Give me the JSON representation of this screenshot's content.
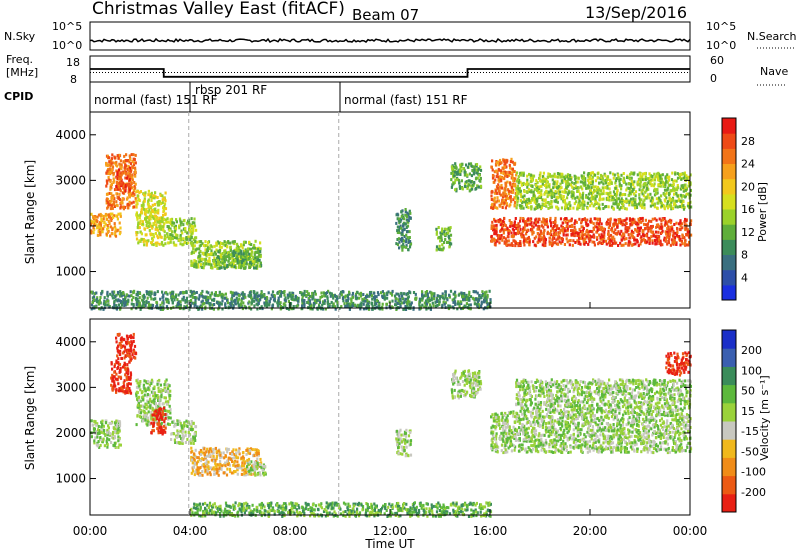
{
  "header": {
    "title": "Christmas Valley East (fitACF)",
    "beam": "Beam 07",
    "date": "13/Sep/2016"
  },
  "time_axis": {
    "label": "Time UT",
    "ticks": [
      "00:00",
      "04:00",
      "08:00",
      "12:00",
      "16:00",
      "20:00",
      "00:00"
    ],
    "range_hours": [
      0,
      24
    ]
  },
  "nsky_panel": {
    "left_label": "N.Sky",
    "right_label": "N.Search",
    "left_ticks": [
      "10^5",
      "10^0"
    ],
    "right_ticks": [
      "10^5",
      "10^0"
    ]
  },
  "freq_panel": {
    "left_label_line1": "Freq.",
    "left_label_line2": "[MHz]",
    "right_label": "Nave",
    "left_ticks": [
      "18",
      "8"
    ],
    "right_ticks": [
      "60",
      "0"
    ],
    "freq_mhz": [
      {
        "t": 0.0,
        "v": 13.0
      },
      {
        "t": 2.95,
        "v": 13.0
      },
      {
        "t": 2.95,
        "v": 10.0
      },
      {
        "t": 15.1,
        "v": 10.0
      },
      {
        "t": 15.1,
        "v": 13.0
      },
      {
        "t": 24.0,
        "v": 13.0
      }
    ],
    "nave_level": 22
  },
  "cpid": {
    "label": "CPID",
    "segments": [
      {
        "t_start": 0.0,
        "text": "normal (fast) 151 RF"
      },
      {
        "t_start": 3.95,
        "text": "rbsp 201 RF"
      },
      {
        "t_start": 9.95,
        "text": "normal (fast) 151 RF"
      }
    ]
  },
  "chart_data": [
    {
      "type": "heatmap",
      "ylabel": "Slant Range [km]",
      "xlabel": "Time UT",
      "xlim": [
        0,
        24
      ],
      "ylim": [
        200,
        4500
      ],
      "yticks": [
        "1000",
        "2000",
        "3000",
        "4000"
      ],
      "colorbar": {
        "label": "Power [dB]",
        "ticks": [
          "4",
          "8",
          "12",
          "16",
          "20",
          "24",
          "28"
        ],
        "colors": [
          "#1a2fe0",
          "#2d4fa8",
          "#3a6f80",
          "#3c8c5a",
          "#5fae3a",
          "#9bd22a",
          "#d6df1e",
          "#f2c81c",
          "#f6a01c",
          "#f27418",
          "#ee4a16",
          "#e81a14"
        ]
      },
      "regions": [
        {
          "t": [
            0.0,
            1.2
          ],
          "r": [
            1800,
            2300
          ],
          "level": 8
        },
        {
          "t": [
            0.6,
            1.8
          ],
          "r": [
            2400,
            3600
          ],
          "level": 9
        },
        {
          "t": [
            1.0,
            1.6
          ],
          "r": [
            2800,
            3300
          ],
          "level": 10
        },
        {
          "t": [
            1.8,
            3.0
          ],
          "r": [
            1600,
            2800
          ],
          "level": 6
        },
        {
          "t": [
            3.0,
            4.2
          ],
          "r": [
            1600,
            2200
          ],
          "level": 5
        },
        {
          "t": [
            4.0,
            6.8
          ],
          "r": [
            1100,
            1700
          ],
          "level": 5
        },
        {
          "t": [
            5.0,
            6.8
          ],
          "r": [
            1100,
            1500
          ],
          "level": 4
        },
        {
          "t": [
            12.2,
            12.8
          ],
          "r": [
            1500,
            2400
          ],
          "level": 3
        },
        {
          "t": [
            13.8,
            14.4
          ],
          "r": [
            1500,
            2000
          ],
          "level": 4
        },
        {
          "t": [
            14.4,
            15.6
          ],
          "r": [
            2800,
            3400
          ],
          "level": 4
        },
        {
          "t": [
            16.0,
            24.0
          ],
          "r": [
            1600,
            2200
          ],
          "level": 10
        },
        {
          "t": [
            16.0,
            17.0
          ],
          "r": [
            2400,
            3500
          ],
          "level": 9
        },
        {
          "t": [
            17.0,
            24.0
          ],
          "r": [
            2400,
            3200
          ],
          "level": 5
        },
        {
          "t": [
            0.0,
            16.0
          ],
          "r": [
            200,
            600
          ],
          "level": 3
        }
      ]
    },
    {
      "type": "heatmap",
      "ylabel": "Slant Range [km]",
      "xlabel": "Time UT",
      "xlim": [
        0,
        24
      ],
      "ylim": [
        200,
        4500
      ],
      "yticks": [
        "1000",
        "2000",
        "3000",
        "4000"
      ],
      "colorbar": {
        "label": "Velocity [m s⁻¹]",
        "ticks": [
          "200",
          "100",
          "50",
          "15",
          "-15",
          "-50",
          "-100",
          "-200"
        ],
        "colors": [
          "#1a2fc8",
          "#3a5fb0",
          "#3a8c5a",
          "#5cb83c",
          "#9ad23a",
          "#c8c8c0",
          "#f0b81c",
          "#f08c18",
          "#ec5a14",
          "#e82014"
        ]
      },
      "regions": [
        {
          "t": [
            0.0,
            1.2
          ],
          "r": [
            1700,
            2300
          ],
          "level": 5
        },
        {
          "t": [
            0.8,
            1.6
          ],
          "r": [
            2900,
            3600
          ],
          "level": 0
        },
        {
          "t": [
            1.0,
            1.8
          ],
          "r": [
            3600,
            4200
          ],
          "level": 0
        },
        {
          "t": [
            1.8,
            3.2
          ],
          "r": [
            2200,
            3200
          ],
          "level": 5
        },
        {
          "t": [
            2.4,
            3.0
          ],
          "r": [
            2000,
            2600
          ],
          "level": 0
        },
        {
          "t": [
            3.2,
            4.2
          ],
          "r": [
            1800,
            2300
          ],
          "level": 5
        },
        {
          "t": [
            4.0,
            6.8
          ],
          "r": [
            1100,
            1700
          ],
          "level": 3
        },
        {
          "t": [
            6.2,
            7.0
          ],
          "r": [
            1100,
            1400
          ],
          "level": 5
        },
        {
          "t": [
            12.2,
            12.8
          ],
          "r": [
            1500,
            2100
          ],
          "level": 5
        },
        {
          "t": [
            14.4,
            15.6
          ],
          "r": [
            2800,
            3400
          ],
          "level": 5
        },
        {
          "t": [
            16.0,
            24.0
          ],
          "r": [
            1600,
            2500
          ],
          "level": 5
        },
        {
          "t": [
            17.0,
            24.0
          ],
          "r": [
            2500,
            3200
          ],
          "level": 5
        },
        {
          "t": [
            23.0,
            24.0
          ],
          "r": [
            3300,
            3800
          ],
          "level": 0
        },
        {
          "t": [
            4.0,
            16.0
          ],
          "r": [
            200,
            500
          ],
          "level": 6
        }
      ]
    }
  ]
}
